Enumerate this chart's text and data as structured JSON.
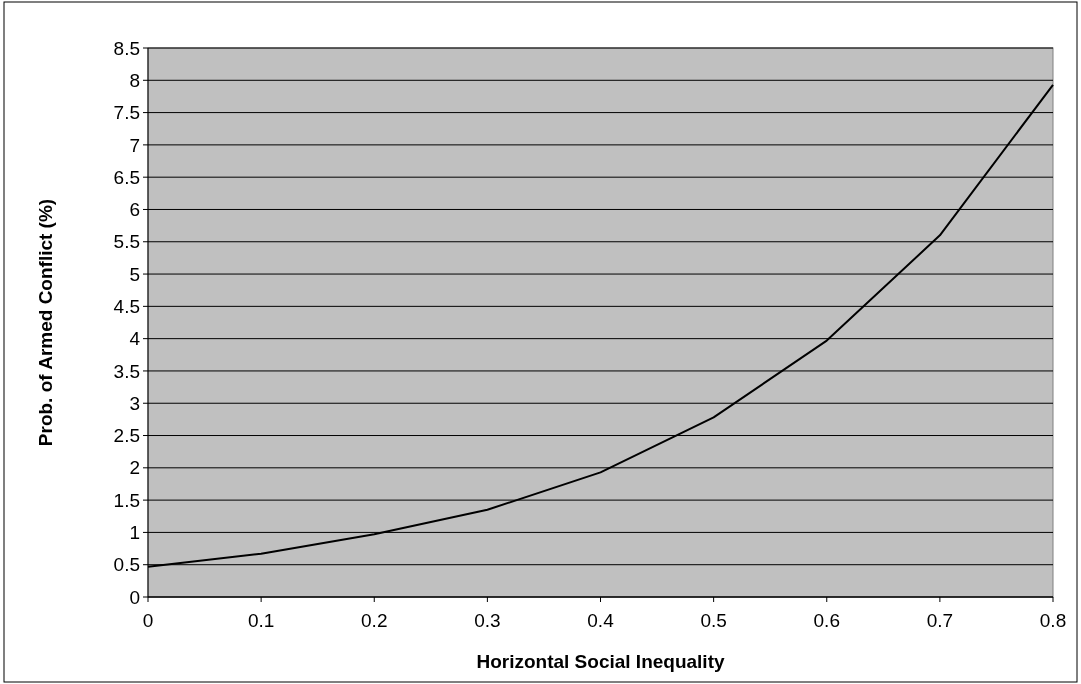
{
  "chart_data": {
    "type": "line",
    "xlabel": "Horizontal Social Inequality",
    "ylabel": "Prob. of Armed Conflict (%)",
    "x": [
      0,
      0.1,
      0.2,
      0.3,
      0.4,
      0.5,
      0.6,
      0.7,
      0.8
    ],
    "series": [
      {
        "color": "#000000",
        "values": [
          0.47,
          0.67,
          0.97,
          1.35,
          1.93,
          2.78,
          3.97,
          5.6,
          7.93
        ]
      }
    ],
    "xlim": [
      0,
      0.8
    ],
    "xticks": [
      0,
      0.1,
      0.2,
      0.3,
      0.4,
      0.5,
      0.6,
      0.7,
      0.8
    ],
    "ylim": [
      0,
      8.5
    ],
    "yticks": [
      0,
      0.5,
      1,
      1.5,
      2,
      2.5,
      3,
      3.5,
      4,
      4.5,
      5,
      5.5,
      6,
      6.5,
      7,
      7.5,
      8,
      8.5
    ],
    "grid": "y",
    "marker": "none",
    "line_style": "solid"
  }
}
